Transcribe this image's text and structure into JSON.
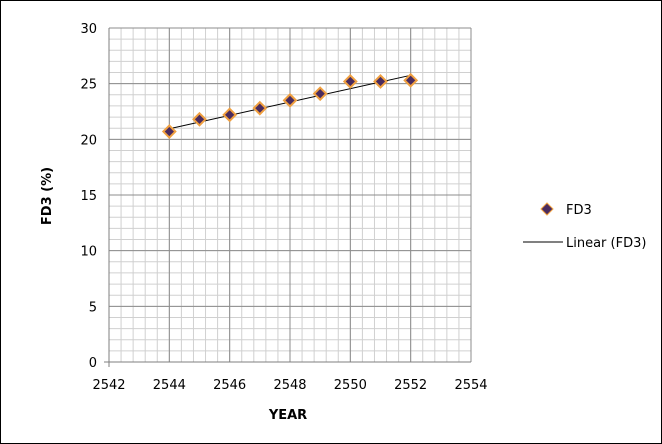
{
  "chart_data": {
    "type": "scatter",
    "title": "",
    "xlabel": "YEAR",
    "ylabel": "FD3 (%)",
    "xlim": [
      2542,
      2554
    ],
    "ylim": [
      0,
      30
    ],
    "x_ticks": [
      2542,
      2544,
      2546,
      2548,
      2550,
      2552,
      2554
    ],
    "y_ticks": [
      0,
      5,
      10,
      15,
      20,
      25,
      30
    ],
    "grid": "major and minor",
    "legend_position": "right",
    "series": [
      {
        "name": "FD3",
        "marker": "diamond",
        "color": "#4a2b5e",
        "edge_color": "#f0a040",
        "x": [
          2544,
          2545,
          2546,
          2547,
          2548,
          2549,
          2550,
          2551,
          2552
        ],
        "y": [
          20.7,
          21.8,
          22.2,
          22.8,
          23.5,
          24.1,
          25.2,
          25.2,
          25.3
        ]
      }
    ],
    "trendline": {
      "name": "Linear (FD3)",
      "type": "linear",
      "color": "#000000",
      "x": [
        2544,
        2552
      ],
      "y": [
        20.95,
        25.75
      ]
    }
  },
  "legend": {
    "series_label": "FD3",
    "trend_label": "Linear (FD3)"
  }
}
